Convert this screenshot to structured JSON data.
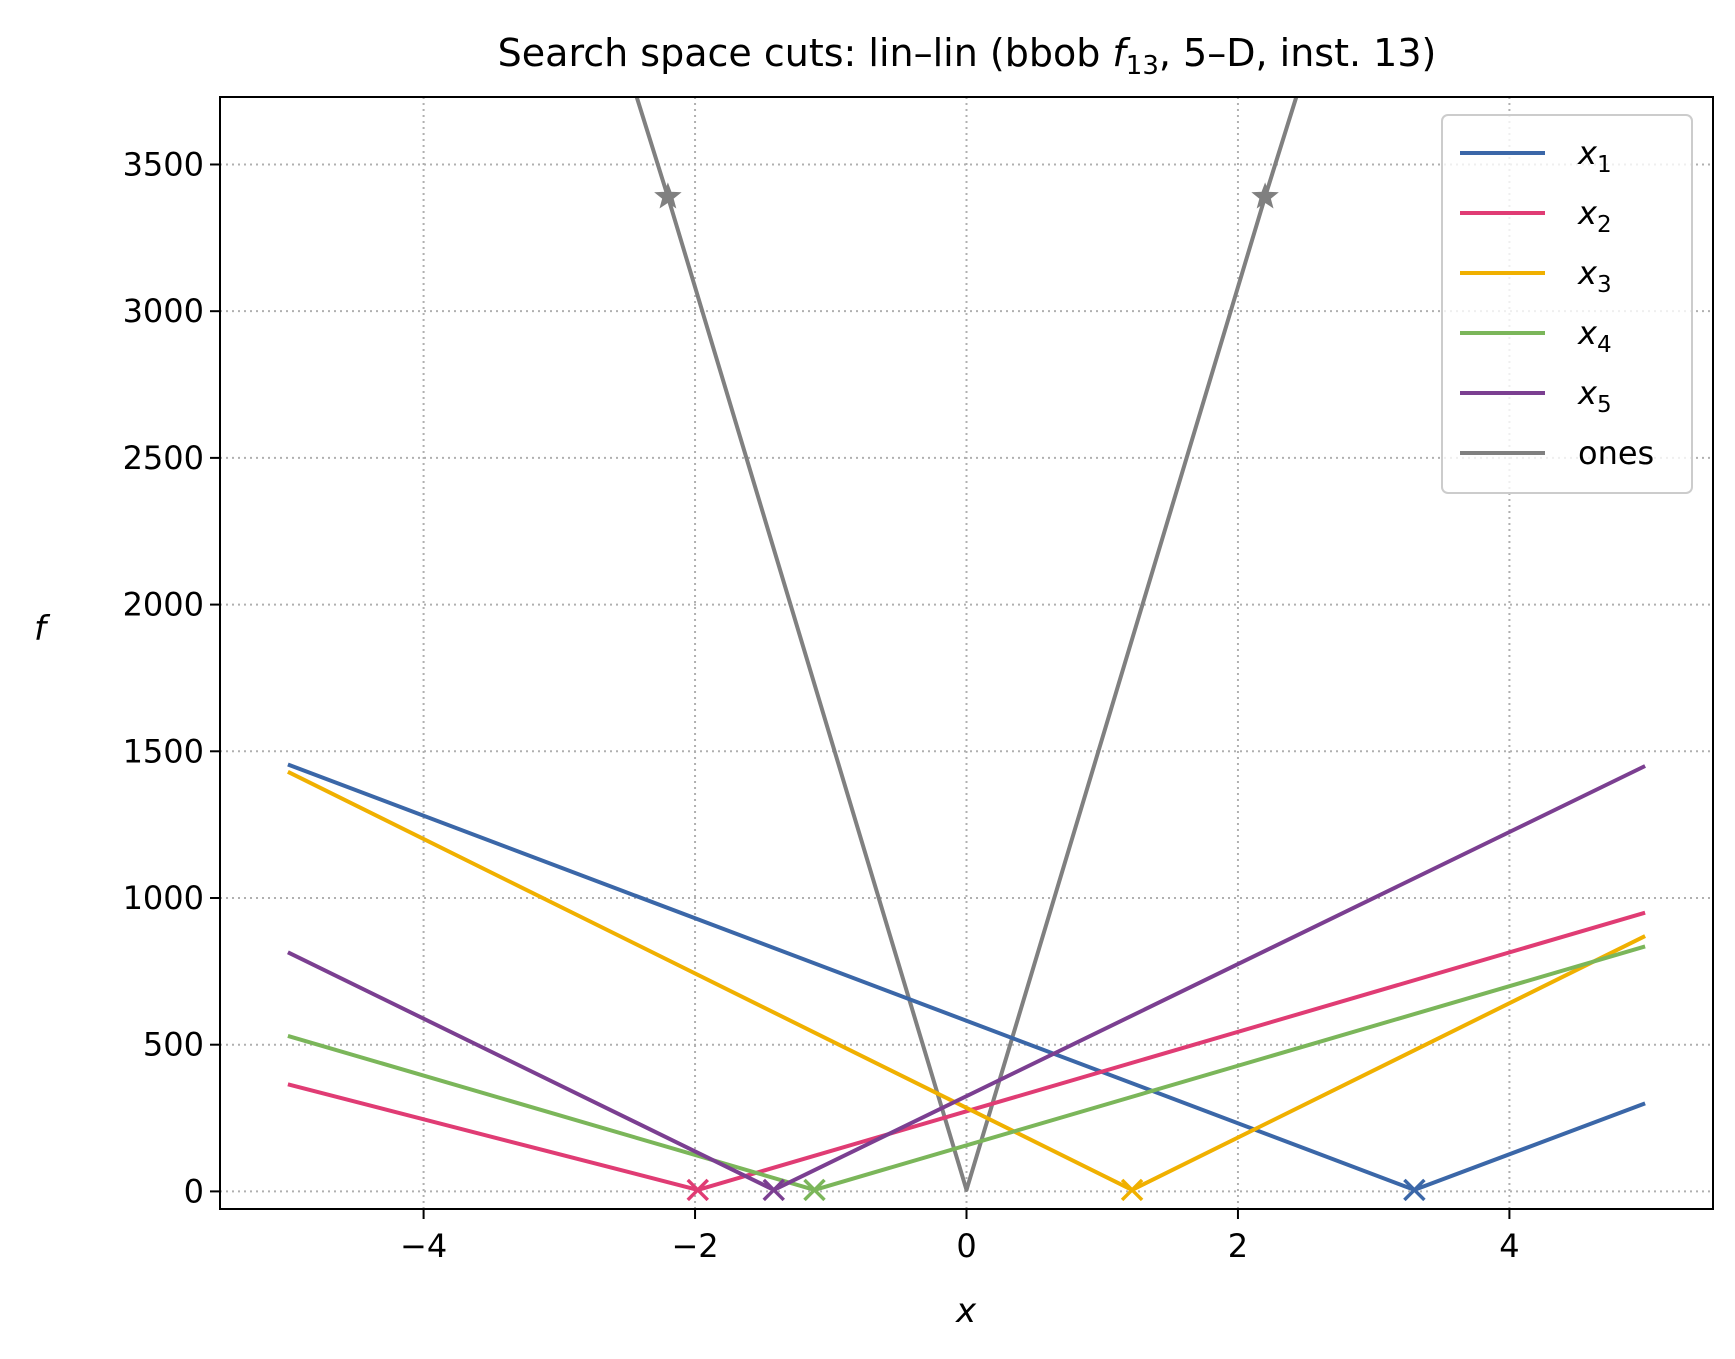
{
  "chart_data": {
    "type": "line",
    "title": "Search space cuts: lin–lin (bbob f13, 5–D, inst. 13)",
    "title_parts": {
      "before": "Search space cuts: lin–lin (bbob ",
      "f": "f",
      "sub": "13",
      "after": ", 5–D, inst. 13)"
    },
    "xlabel": "x",
    "ylabel": "f",
    "xlim": [
      -5.5,
      5.5
    ],
    "ylim": [
      -60,
      3730
    ],
    "xticks": [
      -4,
      -2,
      0,
      2,
      4
    ],
    "xtick_labels": [
      "−4",
      "−2",
      "0",
      "2",
      "4"
    ],
    "yticks": [
      0,
      500,
      1000,
      1500,
      2000,
      2500,
      3000,
      3500
    ],
    "ytick_labels": [
      "0",
      "500",
      "1000",
      "1500",
      "2000",
      "2500",
      "3000",
      "3500"
    ],
    "grid": true,
    "legend_position": "top-right",
    "series": [
      {
        "name": "x1",
        "base": "x",
        "sub": "1",
        "color": "#3b67a8",
        "x": [
          -5,
          3.3,
          5
        ],
        "y": [
          1455,
          5,
          300
        ],
        "marker": {
          "x": 3.3,
          "y": 5,
          "symbol": "x"
        }
      },
      {
        "name": "x2",
        "base": "x",
        "sub": "2",
        "color": "#e03c74",
        "x": [
          -5,
          -1.98,
          5
        ],
        "y": [
          365,
          5,
          950
        ],
        "marker": {
          "x": -1.98,
          "y": 5,
          "symbol": "x"
        }
      },
      {
        "name": "x3",
        "base": "x",
        "sub": "3",
        "color": "#f0b000",
        "x": [
          -5,
          1.22,
          5
        ],
        "y": [
          1430,
          5,
          870
        ],
        "marker": {
          "x": 1.22,
          "y": 5,
          "symbol": "x"
        }
      },
      {
        "name": "x4",
        "base": "x",
        "sub": "4",
        "color": "#7bb65a",
        "x": [
          -5,
          -1.12,
          5
        ],
        "y": [
          530,
          5,
          835
        ],
        "marker": {
          "x": -1.12,
          "y": 5,
          "symbol": "x"
        }
      },
      {
        "name": "x5",
        "base": "x",
        "sub": "5",
        "color": "#7b3f91",
        "x": [
          -5,
          -1.42,
          5
        ],
        "y": [
          815,
          5,
          1450
        ],
        "marker": {
          "x": -1.42,
          "y": 5,
          "symbol": "x"
        }
      },
      {
        "name": "ones",
        "base": "ones",
        "sub": "",
        "color": "#808080",
        "x": [
          -2.43,
          -2.2,
          0,
          2.2,
          2.43
        ],
        "y": [
          3730,
          3390,
          5,
          3390,
          3730
        ],
        "markers": [
          {
            "x": -2.2,
            "y": 3390,
            "symbol": "star"
          },
          {
            "x": 2.2,
            "y": 3390,
            "symbol": "star"
          }
        ]
      }
    ]
  }
}
